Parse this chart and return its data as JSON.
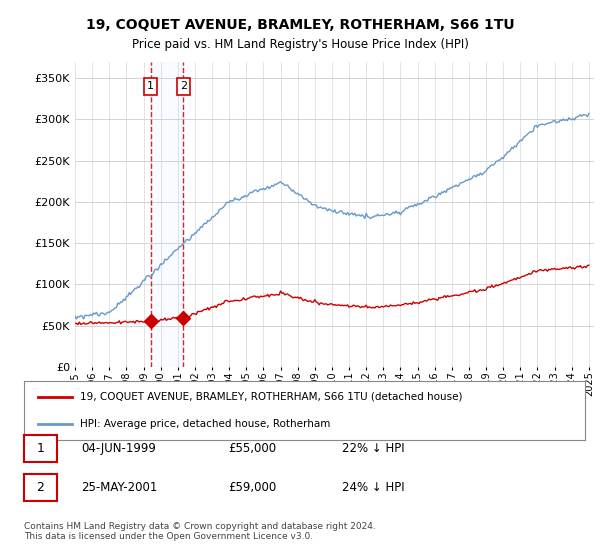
{
  "title": "19, COQUET AVENUE, BRAMLEY, ROTHERHAM, S66 1TU",
  "subtitle": "Price paid vs. HM Land Registry's House Price Index (HPI)",
  "legend_line1": "19, COQUET AVENUE, BRAMLEY, ROTHERHAM, S66 1TU (detached house)",
  "legend_line2": "HPI: Average price, detached house, Rotherham",
  "transaction1_date": "04-JUN-1999",
  "transaction1_price": "£55,000",
  "transaction1_hpi": "22% ↓ HPI",
  "transaction2_date": "25-MAY-2001",
  "transaction2_price": "£59,000",
  "transaction2_hpi": "24% ↓ HPI",
  "footnote": "Contains HM Land Registry data © Crown copyright and database right 2024.\nThis data is licensed under the Open Government Licence v3.0.",
  "red_color": "#cc0000",
  "blue_color": "#6699cc",
  "vline_color": "#cc0000",
  "bg_plot": "#ffffff",
  "grid_color": "#cccccc",
  "span_color": "#ddeeff",
  "ylim": [
    0,
    370000
  ],
  "yticks": [
    0,
    50000,
    100000,
    150000,
    200000,
    250000,
    300000,
    350000
  ],
  "t1": 1999.4167,
  "t2": 2001.3333,
  "prop_t1": 55000,
  "prop_t2": 59000
}
